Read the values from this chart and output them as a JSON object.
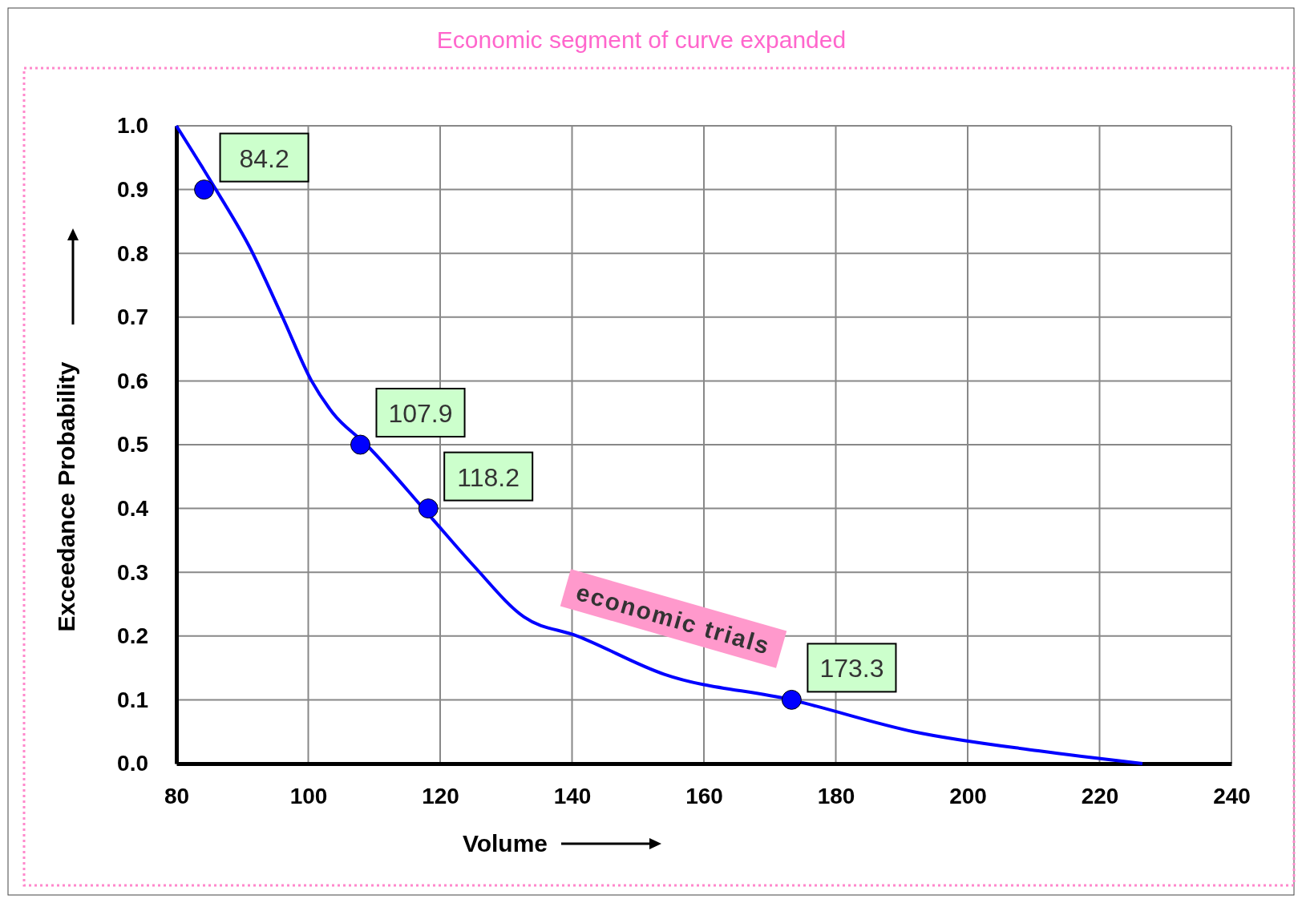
{
  "chart_data": {
    "type": "line",
    "title": "Economic segment of curve expanded",
    "xlabel": "Volume",
    "ylabel": "Exceedance Probability",
    "xlim": [
      80,
      240
    ],
    "xticks": [
      80,
      100,
      120,
      140,
      160,
      180,
      200,
      220,
      240
    ],
    "ylim": [
      0,
      1
    ],
    "yticks": [
      {
        "value": 0,
        "label": "0.0"
      },
      {
        "value": 0.1,
        "label": "0.1"
      },
      {
        "value": 0.2,
        "label": "0.2"
      },
      {
        "value": 0.3,
        "label": "0.3"
      },
      {
        "value": 0.4,
        "label": "0.4"
      },
      {
        "value": 0.5,
        "label": "0.5"
      },
      {
        "value": 0.6,
        "label": "0.6"
      },
      {
        "value": 0.7,
        "label": "0.7"
      },
      {
        "value": 0.8,
        "label": "0.8"
      },
      {
        "value": 0.9,
        "label": "0.9"
      },
      {
        "value": 1,
        "label": "1.0"
      }
    ],
    "grid": true,
    "series": [
      {
        "type": "line",
        "color": "#0000ff",
        "marker": "none",
        "x": [
          80,
          86,
          91.1,
          96.1,
          100.5,
          103.7,
          108.8,
          118.3,
          125.1,
          132.7,
          140.8,
          154,
          173.2,
          191.8,
          210.7,
          226.5
        ],
        "values": [
          1,
          0.9,
          0.81,
          0.7,
          0.6,
          0.55,
          0.5,
          0.39,
          0.31,
          0.23,
          0.2,
          0.14,
          0.1,
          0.05,
          0.02,
          0
        ]
      },
      {
        "type": "scatter",
        "color": "#0000ff",
        "marker": "circle",
        "x": [
          84.2,
          107.9,
          118.2,
          173.3
        ],
        "values": [
          0.9,
          0.5,
          0.4,
          0.1
        ]
      }
    ],
    "annotations": [
      {
        "text": "84.2",
        "x": 84.2,
        "y": 0.9
      },
      {
        "text": "107.9",
        "x": 107.9,
        "y": 0.5
      },
      {
        "text": "118.2",
        "x": 118.2,
        "y": 0.4
      },
      {
        "text": "173.3",
        "x": 173.3,
        "y": 0.1
      },
      "economic trials"
    ]
  }
}
